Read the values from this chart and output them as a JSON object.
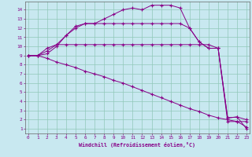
{
  "xlabel": "Windchill (Refroidissement éolien,°C)",
  "bg_color": "#c8e8f0",
  "grid_color": "#90c8b8",
  "line_color": "#880088",
  "x_ticks": [
    0,
    1,
    2,
    3,
    4,
    5,
    6,
    7,
    8,
    9,
    10,
    11,
    12,
    13,
    14,
    15,
    16,
    17,
    18,
    19,
    20,
    21,
    22,
    23
  ],
  "y_ticks": [
    1,
    2,
    3,
    4,
    5,
    6,
    7,
    8,
    9,
    10,
    11,
    12,
    13,
    14
  ],
  "xlim": [
    -0.3,
    23.3
  ],
  "ylim": [
    0.5,
    14.9
  ],
  "curves": [
    {
      "x": [
        0,
        1,
        2,
        3,
        4,
        5,
        6,
        7,
        8,
        9,
        10,
        11,
        12,
        13,
        14,
        15,
        16,
        17,
        18,
        19,
        20,
        21,
        22,
        23
      ],
      "y": [
        9.0,
        9.0,
        9.5,
        10.2,
        11.2,
        12.0,
        12.5,
        12.5,
        13.0,
        13.5,
        14.0,
        14.2,
        14.0,
        14.5,
        14.5,
        14.5,
        14.2,
        12.0,
        10.5,
        9.8,
        9.8,
        2.2,
        2.3,
        1.0
      ]
    },
    {
      "x": [
        0,
        1,
        2,
        3,
        4,
        5,
        6,
        7,
        8,
        9,
        10,
        11,
        12,
        13,
        14,
        15,
        16,
        17,
        18,
        19,
        20,
        21,
        22,
        23
      ],
      "y": [
        9.0,
        9.0,
        9.8,
        10.2,
        10.2,
        10.2,
        10.2,
        10.2,
        10.2,
        10.2,
        10.2,
        10.2,
        10.2,
        10.2,
        10.2,
        10.2,
        10.2,
        10.2,
        10.2,
        10.2,
        9.8,
        1.8,
        1.8,
        1.8
      ]
    },
    {
      "x": [
        0,
        1,
        2,
        3,
        4,
        5,
        6,
        7,
        8,
        9,
        10,
        11,
        12,
        13,
        14,
        15,
        16,
        17,
        18,
        19,
        20,
        21,
        22,
        23
      ],
      "y": [
        9.0,
        9.0,
        9.2,
        10.0,
        11.2,
        12.2,
        12.5,
        12.5,
        12.5,
        12.5,
        12.5,
        12.5,
        12.5,
        12.5,
        12.5,
        12.5,
        12.5,
        12.0,
        10.5,
        9.8,
        9.8,
        2.2,
        2.3,
        2.0
      ]
    },
    {
      "x": [
        0,
        1,
        2,
        3,
        4,
        5,
        6,
        7,
        8,
        9,
        10,
        11,
        12,
        13,
        14,
        15,
        16,
        17,
        18,
        19,
        20,
        21,
        22,
        23
      ],
      "y": [
        9.0,
        9.0,
        8.7,
        8.3,
        8.0,
        7.7,
        7.3,
        7.0,
        6.7,
        6.3,
        6.0,
        5.6,
        5.2,
        4.8,
        4.4,
        4.0,
        3.6,
        3.2,
        2.9,
        2.5,
        2.2,
        2.0,
        1.8,
        1.2
      ]
    }
  ]
}
